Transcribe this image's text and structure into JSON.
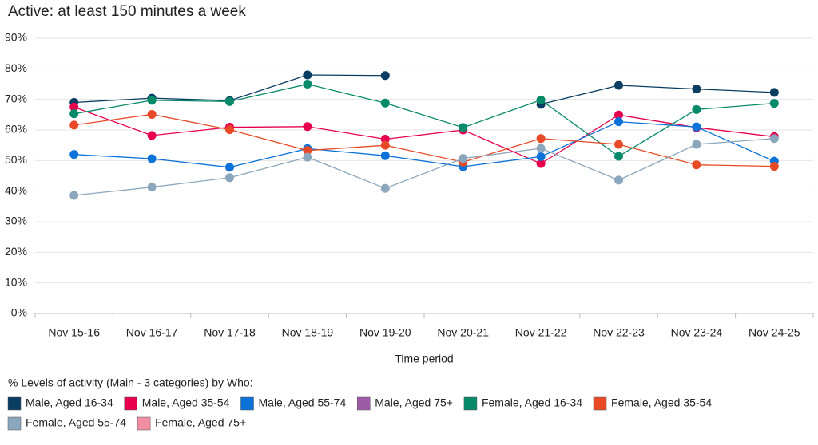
{
  "chart_data": {
    "type": "line",
    "title": "Active: at least 150 minutes a week",
    "x_label": "Time period",
    "legend_title": "% Levels of activity (Main - 3 categories) by Who:",
    "categories": [
      "Nov 15-16",
      "Nov 16-17",
      "Nov 17-18",
      "Nov 18-19",
      "Nov 19-20",
      "Nov 20-21",
      "Nov 21-22",
      "Nov 22-23",
      "Nov 23-24",
      "Nov 24-25"
    ],
    "ylim": [
      0,
      90
    ],
    "yticks": [
      {
        "value": 0,
        "label": "0%"
      },
      {
        "value": 10,
        "label": "10%"
      },
      {
        "value": 20,
        "label": "20%"
      },
      {
        "value": 30,
        "label": "30%"
      },
      {
        "value": 40,
        "label": "40%"
      },
      {
        "value": 50,
        "label": "50%"
      },
      {
        "value": 60,
        "label": "60%"
      },
      {
        "value": 70,
        "label": "70%"
      },
      {
        "value": 80,
        "label": "80%"
      },
      {
        "value": 90,
        "label": "90%"
      }
    ],
    "grid": true,
    "series": [
      {
        "name": "Male, Aged 16-34",
        "color": "#0a3d62",
        "values": [
          69,
          70.4,
          69.6,
          78,
          77.8,
          null,
          68.4,
          74.6,
          73.4,
          72.3
        ]
      },
      {
        "name": "Male, Aged 35-54",
        "color": "#e8004f",
        "values": [
          67.5,
          58.2,
          60.9,
          61.1,
          57,
          60,
          49,
          64.9,
          60.8,
          57.8
        ]
      },
      {
        "name": "Male, Aged 55-74",
        "color": "#0a72d8",
        "values": [
          52,
          50.6,
          47.8,
          53.9,
          51.6,
          48,
          51.3,
          62.7,
          61,
          49.8
        ]
      },
      {
        "name": "Male, Aged 75+",
        "color": "#9e5ba8",
        "values": [
          null,
          null,
          null,
          null,
          null,
          null,
          null,
          null,
          null,
          null
        ]
      },
      {
        "name": "Female, Aged 16-34",
        "color": "#078a6a",
        "values": [
          65.3,
          69.7,
          69.3,
          75,
          68.8,
          60.8,
          69.8,
          51.4,
          66.7,
          68.7
        ]
      },
      {
        "name": "Female, Aged 35-54",
        "color": "#e84a27",
        "values": [
          61.6,
          65.1,
          60.1,
          53.3,
          55,
          49.5,
          57.2,
          55.3,
          48.6,
          48.1
        ]
      },
      {
        "name": "Female, Aged 55-74",
        "color": "#8ba7bd",
        "values": [
          38.6,
          41.3,
          44.4,
          51.1,
          40.9,
          50.7,
          54,
          43.6,
          55.3,
          57.2
        ]
      },
      {
        "name": "Female, Aged 75+",
        "color": "#f28da3",
        "values": [
          null,
          null,
          null,
          null,
          null,
          null,
          null,
          null,
          null,
          null
        ]
      }
    ]
  }
}
